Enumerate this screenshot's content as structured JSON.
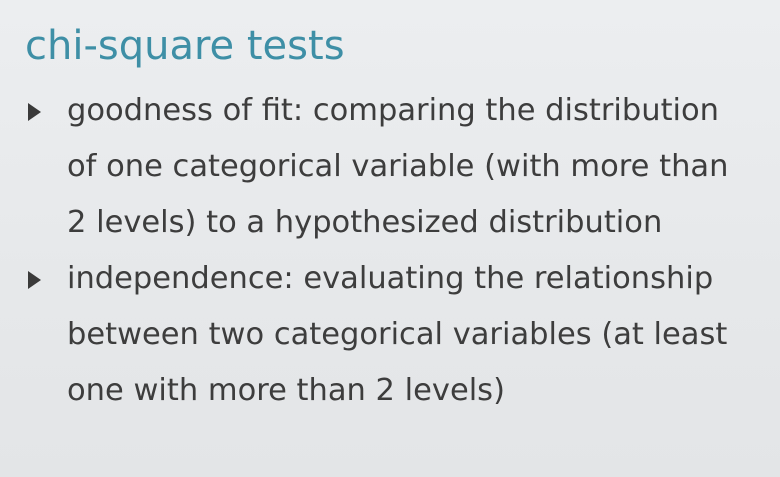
{
  "slide": {
    "title": "chi-square tests",
    "bullets": [
      {
        "icon": "triangle-bullet-icon",
        "lines": [
          "goodness of fit: comparing the distribution",
          "of one categorical variable (with more than",
          "2 levels) to a hypothesized distribution"
        ]
      },
      {
        "icon": "triangle-bullet-icon",
        "lines": [
          "independence: evaluating the relationship",
          "between two categorical variables (at least",
          "one with more than 2 levels)"
        ]
      }
    ]
  },
  "colors": {
    "title": "#3e8fa6",
    "text": "#3d3d3d",
    "background": "#e7e9eb"
  }
}
